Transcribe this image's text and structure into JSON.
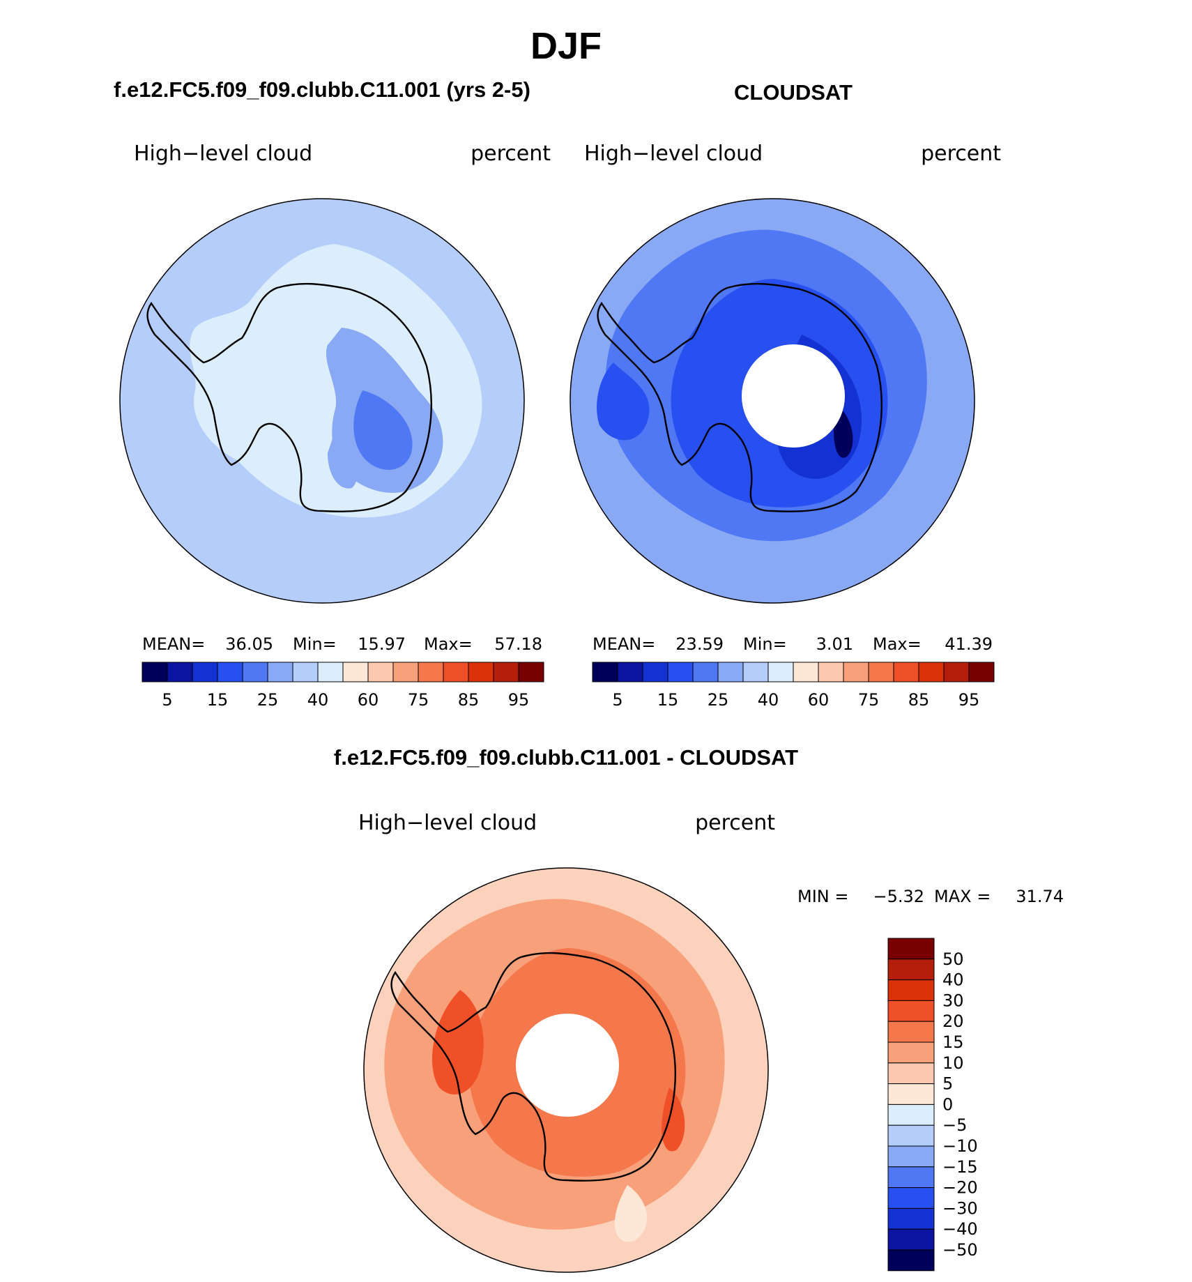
{
  "page_title": "DJF",
  "colors": {
    "ocean_model": "#b4cdfa",
    "ocean_obs": "#8aa9f4",
    "ocean_diff": "#fcd2bd",
    "coast": "#000000",
    "blank_pole": "#ffffff"
  },
  "top_colorbar": {
    "colors": [
      "#00005a",
      "#0a14a0",
      "#1432d2",
      "#2850f0",
      "#5078f4",
      "#8aa9f4",
      "#b4cdfa",
      "#dceefc",
      "#fde8d8",
      "#fcc8b0",
      "#f8a07a",
      "#f4784c",
      "#f05028",
      "#dc320a",
      "#b41e0a",
      "#780000"
    ],
    "tick_labels": [
      "5",
      "15",
      "25",
      "40",
      "60",
      "75",
      "85",
      "95"
    ]
  },
  "diff_colorbar": {
    "colors_top_to_bottom": [
      "#780000",
      "#b41e0a",
      "#dc320a",
      "#f05028",
      "#f4784c",
      "#f8a07a",
      "#fcc8b0",
      "#fde8d8",
      "#dceefc",
      "#b4cdfa",
      "#8aa9f4",
      "#5078f4",
      "#2850f0",
      "#1432d2",
      "#0a14a0",
      "#00005a"
    ],
    "tick_labels": [
      "50",
      "40",
      "30",
      "20",
      "15",
      "10",
      "5",
      "0",
      "−5",
      "−10",
      "−15",
      "−20",
      "−30",
      "−40",
      "−50"
    ]
  },
  "panels": {
    "model": {
      "title": "f.e12.FC5.f09_f09.clubb.C11.001 (yrs 2-5)",
      "variable": "High−level cloud",
      "units": "percent",
      "stats": {
        "mean_label": "MEAN=",
        "mean": "36.05",
        "min_label": "Min=",
        "min": "15.97",
        "max_label": "Max=",
        "max": "57.18"
      }
    },
    "obs": {
      "title": "CLOUDSAT",
      "variable": "High−level cloud",
      "units": "percent",
      "stats": {
        "mean_label": "MEAN=",
        "mean": "23.59",
        "min_label": "Min=",
        "min": "3.01",
        "max_label": "Max=",
        "max": "41.39"
      }
    },
    "diff": {
      "title": "f.e12.FC5.f09_f09.clubb.C11.001 - CLOUDSAT",
      "variable": "High−level cloud",
      "units": "percent",
      "stats": {
        "min_label": "MIN =",
        "min": "−5.32",
        "max_label": "MAX =",
        "max": "31.74"
      }
    }
  }
}
